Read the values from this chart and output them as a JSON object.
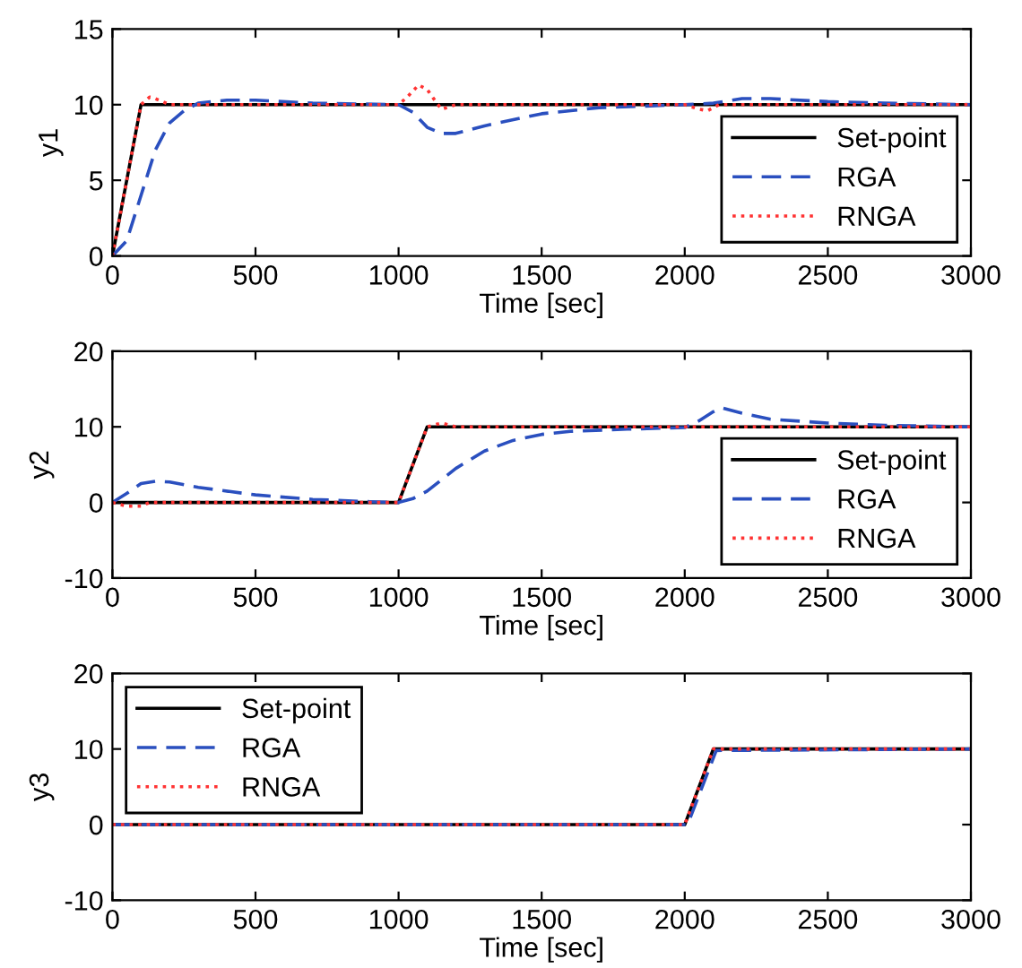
{
  "chart_data": [
    {
      "type": "line",
      "xlabel": "Time [sec]",
      "ylabel": "y1",
      "xlim": [
        0,
        3000
      ],
      "ylim": [
        0,
        15
      ],
      "xticks": [
        0,
        500,
        1000,
        1500,
        2000,
        2500,
        3000
      ],
      "yticks": [
        0,
        5,
        10,
        15
      ],
      "grid": false,
      "legend": "lower right",
      "series": [
        {
          "name": "Set-point",
          "color": "#000000",
          "line_style": "solid",
          "x": [
            0,
            100,
            3000
          ],
          "values": [
            0,
            10,
            10
          ]
        },
        {
          "name": "RGA",
          "color": "#2a4fbf",
          "line_style": "dashed",
          "x": [
            0,
            50,
            100,
            150,
            200,
            250,
            300,
            400,
            500,
            700,
            1000,
            1050,
            1100,
            1150,
            1200,
            1300,
            1500,
            1700,
            2000,
            2100,
            2200,
            2300,
            2500,
            2700,
            3000
          ],
          "values": [
            0,
            1,
            4,
            7,
            8.8,
            9.6,
            10.1,
            10.3,
            10.3,
            10.1,
            10,
            9.5,
            8.5,
            8.1,
            8.1,
            8.6,
            9.4,
            9.8,
            10,
            10.1,
            10.4,
            10.4,
            10.2,
            10.1,
            10
          ]
        },
        {
          "name": "RNGA",
          "color": "#ff3333",
          "line_style": "dotted",
          "x": [
            0,
            50,
            100,
            130,
            150,
            200,
            300,
            1000,
            1030,
            1070,
            1100,
            1130,
            1150,
            1200,
            2000,
            2050,
            2080,
            2120,
            2150,
            3000
          ],
          "values": [
            0,
            5,
            10,
            10.5,
            10.4,
            10,
            10,
            10,
            10.5,
            11.3,
            11,
            10.2,
            9.7,
            10,
            10,
            9.7,
            9.6,
            10,
            10,
            10
          ]
        }
      ]
    },
    {
      "type": "line",
      "xlabel": "Time [sec]",
      "ylabel": "y2",
      "xlim": [
        0,
        3000
      ],
      "ylim": [
        -10,
        20
      ],
      "xticks": [
        0,
        500,
        1000,
        1500,
        2000,
        2500,
        3000
      ],
      "yticks": [
        -10,
        0,
        10,
        20
      ],
      "grid": false,
      "legend": "lower right",
      "series": [
        {
          "name": "Set-point",
          "color": "#000000",
          "line_style": "solid",
          "x": [
            0,
            1000,
            1100,
            3000
          ],
          "values": [
            0,
            0,
            10,
            10
          ]
        },
        {
          "name": "RGA",
          "color": "#2a4fbf",
          "line_style": "dashed",
          "x": [
            0,
            50,
            100,
            150,
            200,
            300,
            500,
            700,
            900,
            1000,
            1050,
            1100,
            1150,
            1200,
            1300,
            1400,
            1500,
            1600,
            1800,
            2000,
            2050,
            2100,
            2130,
            2200,
            2300,
            2500,
            2700,
            3000
          ],
          "values": [
            0,
            1.2,
            2.5,
            2.8,
            2.7,
            2,
            1,
            0.4,
            0.1,
            0,
            0.5,
            1.5,
            3,
            4.5,
            6.8,
            8.2,
            9,
            9.4,
            9.7,
            9.9,
            10.8,
            12,
            12.5,
            11.8,
            11,
            10.5,
            10.2,
            10
          ]
        },
        {
          "name": "RNGA",
          "color": "#ff3333",
          "line_style": "dotted",
          "x": [
            0,
            50,
            100,
            130,
            1000,
            1050,
            1100,
            1150,
            1200,
            2000,
            3000
          ],
          "values": [
            0,
            -0.5,
            -0.5,
            0,
            0,
            5,
            10,
            10.5,
            10,
            10,
            10
          ]
        }
      ]
    },
    {
      "type": "line",
      "xlabel": "Time [sec]",
      "ylabel": "y3",
      "xlim": [
        0,
        3000
      ],
      "ylim": [
        -10,
        20
      ],
      "xticks": [
        0,
        500,
        1000,
        1500,
        2000,
        2500,
        3000
      ],
      "yticks": [
        -10,
        0,
        10,
        20
      ],
      "grid": false,
      "legend": "upper left",
      "series": [
        {
          "name": "Set-point",
          "color": "#000000",
          "line_style": "solid",
          "x": [
            0,
            2000,
            2100,
            3000
          ],
          "values": [
            0,
            0,
            10,
            10
          ]
        },
        {
          "name": "RGA",
          "color": "#2a4fbf",
          "line_style": "dashed",
          "x": [
            0,
            2000,
            2010,
            2110,
            3000
          ],
          "values": [
            0,
            0,
            0,
            9.8,
            10
          ]
        },
        {
          "name": "RNGA",
          "color": "#ff3333",
          "line_style": "dotted",
          "x": [
            0,
            2000,
            2100,
            3000
          ],
          "values": [
            0,
            0,
            10,
            10
          ]
        }
      ]
    }
  ]
}
